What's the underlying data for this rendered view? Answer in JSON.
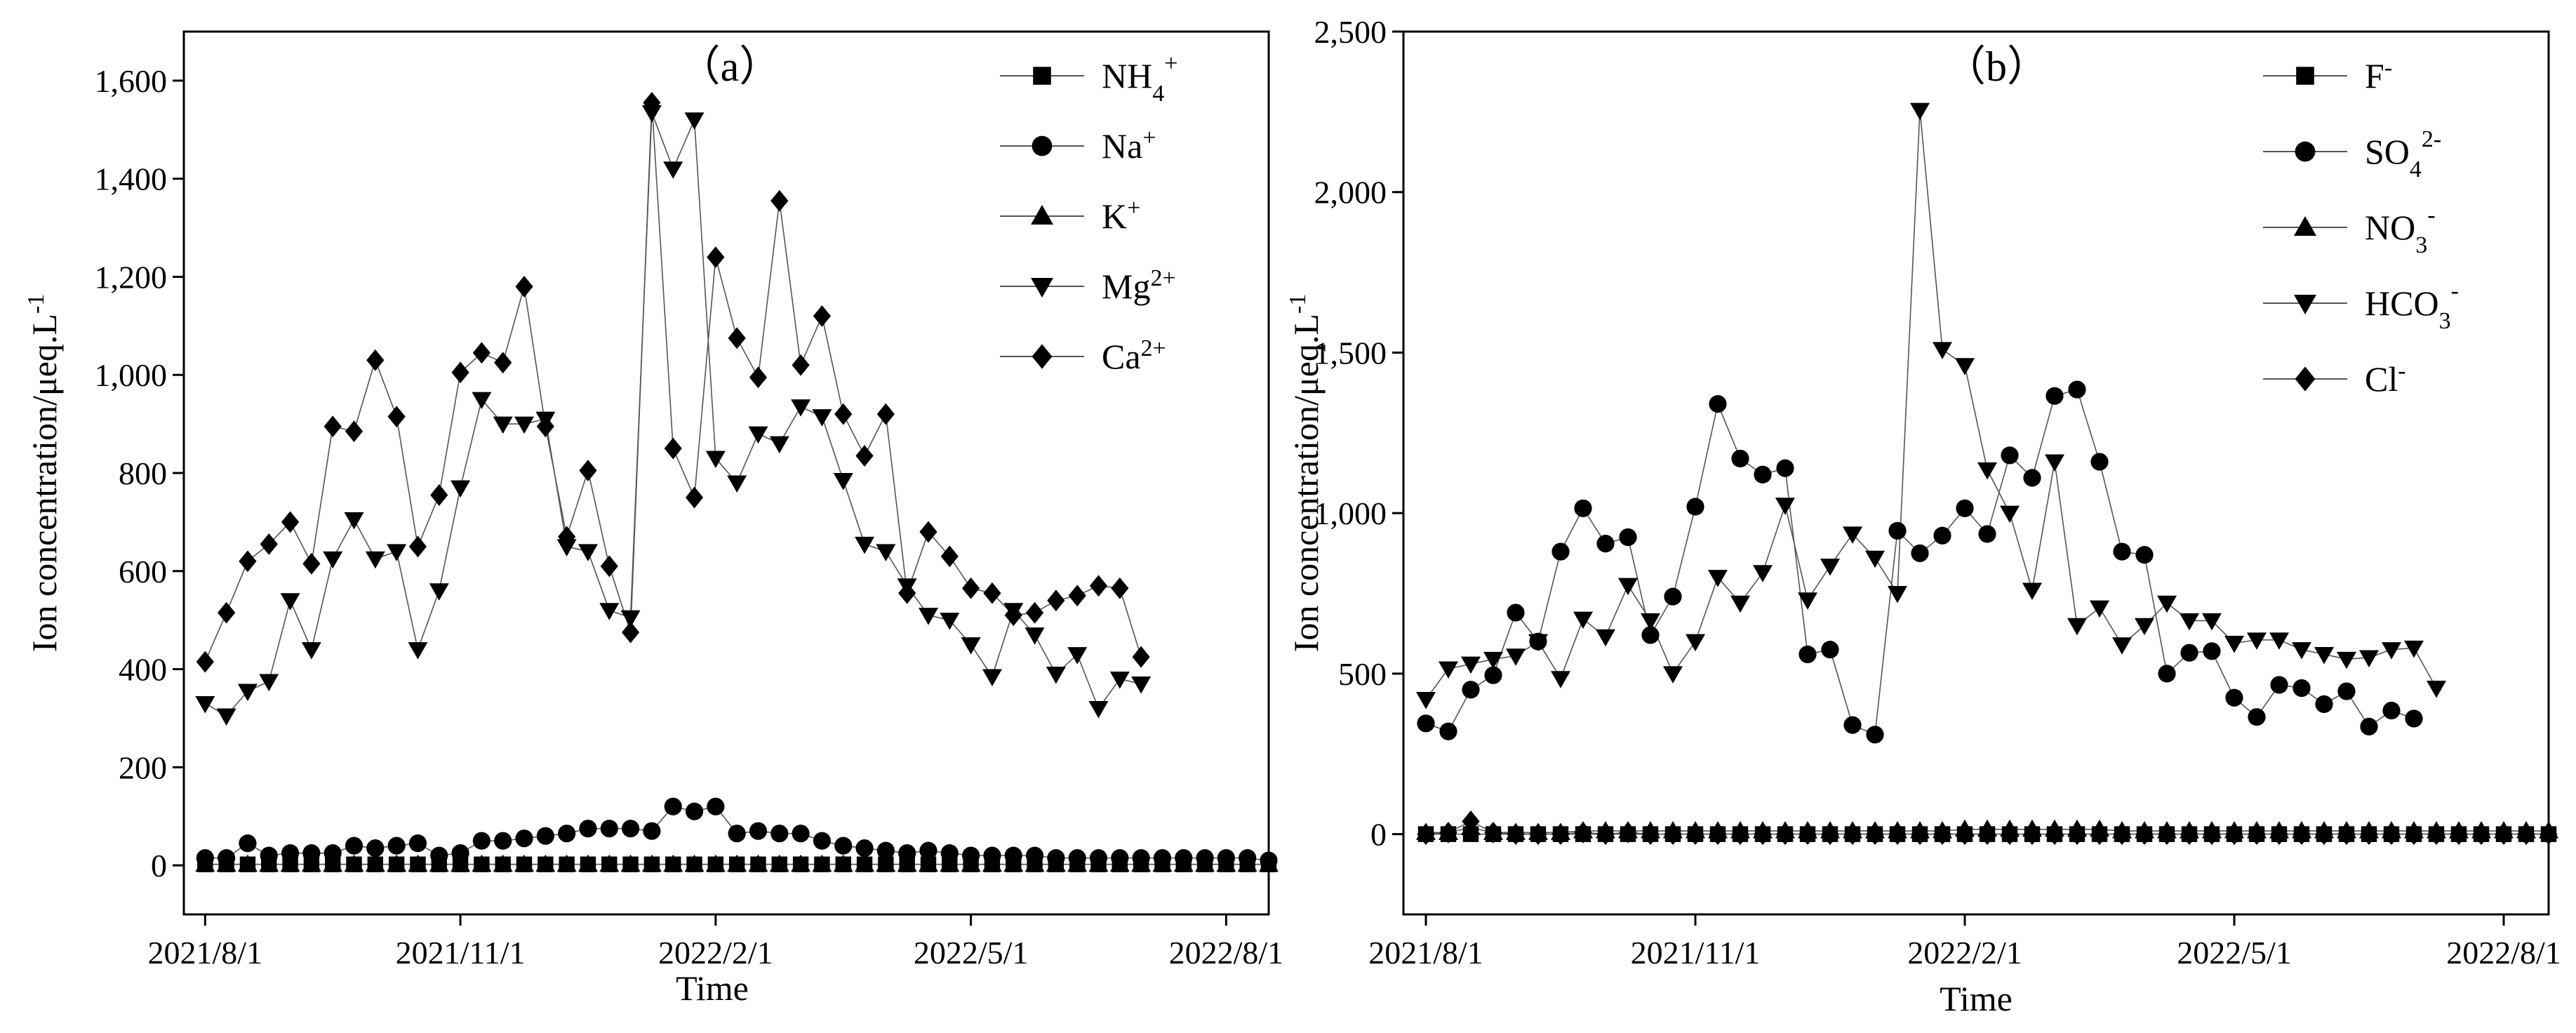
{
  "chart_data": [
    {
      "type": "scatter",
      "panel_label": "（a）",
      "title": "",
      "xlabel": "Time",
      "ylabel": "Ion concentration/μeq.L-1",
      "ylabel_main": "Ion concentration/μeq.L",
      "ylabel_sup": "-1",
      "ylim": [
        -100,
        1700
      ],
      "yticks": [
        0,
        200,
        400,
        600,
        800,
        1000,
        1200,
        1400,
        1600
      ],
      "ytick_labels": [
        "0",
        "200",
        "400",
        "600",
        "800",
        "1,000",
        "1,200",
        "1,400",
        "1,600"
      ],
      "xlim": [
        -1,
        50
      ],
      "xticks": [
        0,
        12,
        24,
        36,
        48
      ],
      "xtick_labels": [
        "2021/8/1",
        "2021/11/1",
        "2022/2/1",
        "2022/5/1",
        "2022/8/1"
      ],
      "legend_position": "top-right",
      "series": [
        {
          "name": "NH4+",
          "base": "NH",
          "sub": "4",
          "sup": "+",
          "marker": "square",
          "values": [
            2,
            2,
            2,
            2,
            2,
            2,
            2,
            2,
            2,
            2,
            2,
            2,
            2,
            2,
            2,
            2,
            2,
            2,
            2,
            2,
            2,
            2,
            2,
            2,
            2,
            2,
            2,
            2,
            2,
            2,
            2,
            2,
            2,
            2,
            2,
            2,
            2,
            2,
            2,
            2,
            2,
            2,
            2,
            2,
            2,
            2,
            2,
            2,
            2,
            2,
            2
          ]
        },
        {
          "name": "Na+",
          "base": "Na",
          "sub": "",
          "sup": "+",
          "marker": "circle",
          "values": [
            15,
            15,
            45,
            20,
            25,
            25,
            25,
            40,
            35,
            40,
            45,
            20,
            25,
            50,
            50,
            55,
            60,
            65,
            75,
            75,
            75,
            70,
            120,
            110,
            120,
            65,
            70,
            65,
            65,
            50,
            40,
            35,
            30,
            25,
            30,
            25,
            20,
            20,
            20,
            20,
            15,
            15,
            15,
            15,
            15,
            15,
            15,
            15,
            15,
            15,
            10
          ]
        },
        {
          "name": "K+",
          "base": "K",
          "sub": "",
          "sup": "+",
          "marker": "triangle-up",
          "values": [
            2,
            2,
            2,
            2,
            2,
            2,
            2,
            2,
            2,
            2,
            2,
            2,
            2,
            2,
            2,
            2,
            2,
            2,
            2,
            2,
            2,
            2,
            2,
            2,
            2,
            2,
            2,
            2,
            2,
            2,
            2,
            2,
            2,
            2,
            2,
            2,
            2,
            2,
            2,
            2,
            2,
            2,
            2,
            2,
            2,
            2,
            2,
            2,
            2,
            2,
            2
          ]
        },
        {
          "name": "Mg2+",
          "base": "Mg",
          "sub": "",
          "sup": "2+",
          "marker": "triangle-down",
          "values": [
            330,
            305,
            355,
            375,
            540,
            440,
            625,
            705,
            625,
            640,
            440,
            560,
            770,
            950,
            900,
            900,
            910,
            650,
            640,
            520,
            505,
            1535,
            1420,
            1520,
            830,
            780,
            880,
            860,
            935,
            915,
            785,
            655,
            640,
            570,
            510,
            500,
            450,
            385,
            520,
            470,
            390,
            430,
            320,
            380,
            370
          ]
        },
        {
          "name": "Ca2+",
          "base": "Ca",
          "sub": "",
          "sup": "2+",
          "marker": "diamond",
          "values": [
            415,
            515,
            620,
            655,
            700,
            615,
            895,
            885,
            1030,
            915,
            650,
            755,
            1005,
            1045,
            1025,
            1180,
            895,
            670,
            805,
            610,
            475,
            1555,
            850,
            750,
            1240,
            1075,
            995,
            1355,
            1020,
            1120,
            920,
            835,
            920,
            555,
            680,
            630,
            565,
            555,
            510,
            515,
            540,
            550,
            570,
            565,
            425
          ]
        }
      ]
    },
    {
      "type": "scatter",
      "panel_label": "（b）",
      "title": "",
      "xlabel": "Time",
      "ylabel": "Ion concentration/μeq.L-1",
      "ylabel_main": "Ion concentration/μeq.L",
      "ylabel_sup": "-1",
      "ylim": [
        -250,
        2500
      ],
      "yticks": [
        0,
        500,
        1000,
        1500,
        2000,
        2500
      ],
      "ytick_labels": [
        "0",
        "500",
        "1,000",
        "1,500",
        "2,000",
        "2,500"
      ],
      "xlim": [
        -1,
        50
      ],
      "xticks": [
        0,
        12,
        24,
        36,
        48
      ],
      "xtick_labels": [
        "2021/8/1",
        "2021/11/1",
        "2022/2/1",
        "2022/5/1",
        "2022/8/1"
      ],
      "legend_position": "top-right",
      "series": [
        {
          "name": "F-",
          "base": "F",
          "sub": "",
          "sup": "-",
          "marker": "square",
          "values": [
            0,
            0,
            0,
            0,
            0,
            0,
            0,
            0,
            0,
            0,
            0,
            0,
            0,
            0,
            0,
            0,
            0,
            0,
            0,
            0,
            0,
            0,
            0,
            0,
            0,
            0,
            0,
            0,
            0,
            0,
            0,
            0,
            0,
            0,
            0,
            0,
            0,
            0,
            0,
            0,
            0,
            0,
            0,
            0,
            0,
            0,
            0,
            0,
            0,
            0,
            0
          ]
        },
        {
          "name": "SO42-",
          "base": "SO",
          "sub": "4",
          "sup": "2-",
          "marker": "circle",
          "values": [
            345,
            320,
            450,
            495,
            690,
            600,
            880,
            1015,
            905,
            925,
            620,
            740,
            1020,
            1340,
            1170,
            1120,
            1140,
            560,
            575,
            340,
            310,
            945,
            875,
            930,
            1015,
            935,
            1180,
            1110,
            1365,
            1385,
            1160,
            880,
            870,
            500,
            565,
            570,
            425,
            365,
            465,
            455,
            405,
            445,
            335,
            385,
            360
          ]
        },
        {
          "name": "NO3-",
          "base": "NO",
          "sub": "3",
          "sup": "-",
          "marker": "triangle-up",
          "values": [
            5,
            5,
            20,
            5,
            5,
            5,
            5,
            10,
            10,
            10,
            10,
            10,
            10,
            10,
            10,
            10,
            10,
            10,
            10,
            10,
            10,
            10,
            10,
            10,
            15,
            15,
            15,
            15,
            15,
            15,
            15,
            10,
            10,
            10,
            10,
            10,
            10,
            10,
            10,
            10,
            10,
            10,
            10,
            10,
            10,
            10,
            10,
            10,
            10,
            10,
            10
          ]
        },
        {
          "name": "HCO3-",
          "base": "HCO",
          "sub": "3",
          "sup": "-",
          "marker": "triangle-down",
          "values": [
            420,
            515,
            530,
            545,
            555,
            600,
            485,
            670,
            615,
            775,
            665,
            500,
            600,
            800,
            720,
            815,
            1025,
            730,
            835,
            935,
            860,
            750,
            2255,
            1510,
            1460,
            1135,
            1000,
            760,
            1160,
            650,
            705,
            590,
            650,
            720,
            665,
            665,
            595,
            605,
            605,
            575,
            560,
            545,
            550,
            575,
            580,
            455
          ]
        },
        {
          "name": "Cl-",
          "base": "Cl",
          "sub": "",
          "sup": "-",
          "marker": "diamond",
          "values": [
            0,
            5,
            40,
            5,
            0,
            0,
            0,
            5,
            0,
            5,
            0,
            0,
            0,
            0,
            0,
            0,
            0,
            0,
            0,
            0,
            0,
            0,
            0,
            0,
            0,
            0,
            0,
            0,
            0,
            0,
            0,
            0,
            0,
            0,
            0,
            0,
            0,
            0,
            0,
            0,
            0,
            0,
            0,
            0,
            0,
            0,
            0,
            0,
            0,
            0,
            0
          ]
        }
      ]
    }
  ]
}
